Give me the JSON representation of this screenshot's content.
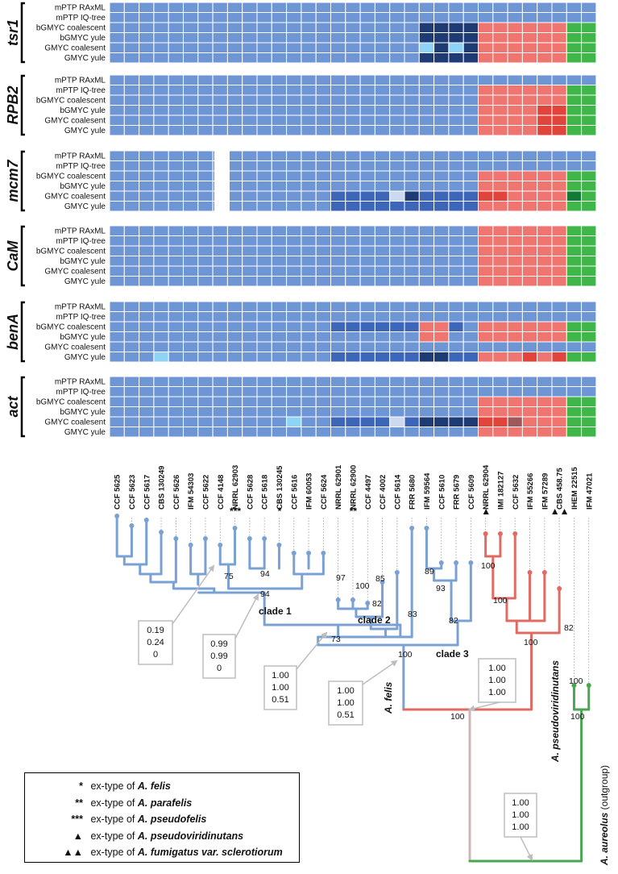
{
  "loci": [
    {
      "name": "tsr1",
      "methods": [
        "mPTP RAxML",
        "mPTP IQ-tree",
        "bGMYC coalescent",
        "bGMYC yule",
        "GMYC coalesent",
        "GMYC yule"
      ]
    },
    {
      "name": "RPB2",
      "methods": [
        "mPTP RAxML",
        "mPTP IQ-tree",
        "bGMYC coalescent",
        "bGMYC yule",
        "GMYC coalesent",
        "GMYC yule"
      ]
    },
    {
      "name": "mcm7",
      "methods": [
        "mPTP RAxML",
        "mPTP IQ-tree",
        "bGMYC coalescent",
        "bGMYC yule",
        "GMYC coalesent",
        "GMYC yule"
      ]
    },
    {
      "name": "CaM",
      "methods": [
        "mPTP RAxML",
        "mPTP IQ-tree",
        "bGMYC coalescent",
        "bGMYC yule",
        "GMYC coalesent",
        "GMYC yule"
      ]
    },
    {
      "name": "benA",
      "methods": [
        "mPTP RAxML",
        "mPTP IQ-tree",
        "bGMYC coalescent",
        "bGMYC yule",
        "GMYC coalesent",
        "GMYC yule"
      ]
    },
    {
      "name": "act",
      "methods": [
        "mPTP RAxML",
        "mPTP IQ-tree",
        "bGMYC coalescent",
        "bGMYC yule",
        "GMYC coalesent",
        "GMYC yule"
      ]
    }
  ],
  "strains": [
    "CCF 5625",
    "CCF 5623",
    "CCF 5617",
    "CBS 130249",
    "CCF 5626",
    "IFM 54303",
    "CCF 5622",
    "CCF 4148",
    "NRRL 62903",
    "CCF 5628",
    "CCF 5618",
    "CBS 130245",
    "CCF 5616",
    "IFM 60053",
    "CCF 5624",
    "NRRL 62901",
    "NRRL 62900",
    "CCF 4497",
    "CCF 4002",
    "CCF 5614",
    "FRR 5680",
    "IFM 59564",
    "CCF 5610",
    "FRR 5679",
    "CCF 5609",
    "NRRL 62904",
    "IMI 182127",
    "CCF 5632",
    "IFM 55266",
    "IFM 57289",
    "CBS 458.75",
    "IHEM 22515",
    "IFM 47021"
  ],
  "strain_marks": [
    {
      "strain": "NRRL 62903",
      "mark": "***"
    },
    {
      "strain": "CBS 130245",
      "mark": "*"
    },
    {
      "strain": "NRRL 62900",
      "mark": "**"
    },
    {
      "strain": "NRRL 62904",
      "mark": "▲"
    },
    {
      "strain": "CBS 458.75",
      "mark": "▲▲"
    }
  ],
  "colors": {
    "default": "#6f96d4",
    "mid": "#3d66b8",
    "dark": "#1e3b73",
    "light": "#8fd4f5",
    "pale": "#ccd9ef",
    "salmon": "#ef7670",
    "red": "#e0443a",
    "brown": "#9e5a5a",
    "green": "#3fb54a",
    "darkgreen": "#127a36",
    "tree_blue": "#7aa1d4",
    "tree_red": "#e06b63",
    "tree_green": "#4aa650",
    "tree_grey": "#cfb5b5"
  },
  "support_values": [
    "75",
    "94",
    "94",
    "97",
    "100",
    "85",
    "82",
    "83",
    "89",
    "93",
    "82",
    "100",
    "100",
    "100",
    "100",
    "82",
    "73",
    "100",
    "100",
    "100"
  ],
  "clade_labels": [
    "clade 1",
    "clade 2",
    "clade 3"
  ],
  "species_labels": [
    "A. felis",
    "A. pseudoviridinutans",
    "A. aureolus"
  ],
  "outgroup_label": "(outgroup)",
  "pp_boxes": [
    {
      "lines": [
        "0.19",
        "0.24",
        "0"
      ]
    },
    {
      "lines": [
        "0.99",
        "0.99",
        "0"
      ]
    },
    {
      "lines": [
        "1.00",
        "1.00",
        "0.51"
      ]
    },
    {
      "lines": [
        "1.00",
        "1.00",
        "0.51"
      ]
    },
    {
      "lines": [
        "1.00",
        "1.00",
        "1.00"
      ]
    },
    {
      "lines": [
        "1.00",
        "1.00",
        "1.00"
      ]
    }
  ],
  "legend": [
    {
      "symbol": "*",
      "text": "ex-type of",
      "species": "A. felis"
    },
    {
      "symbol": "**",
      "text": "ex-type of",
      "species": "A. parafelis"
    },
    {
      "symbol": "***",
      "text": "ex-type of",
      "species": "A. pseudofelis"
    },
    {
      "symbol": "▲",
      "text": "ex-type of",
      "species": "A. pseudoviridinutans"
    },
    {
      "symbol": "▲▲",
      "text": "ex-type of",
      "species": "A. fumigatus var. sclerotiorum"
    }
  ]
}
